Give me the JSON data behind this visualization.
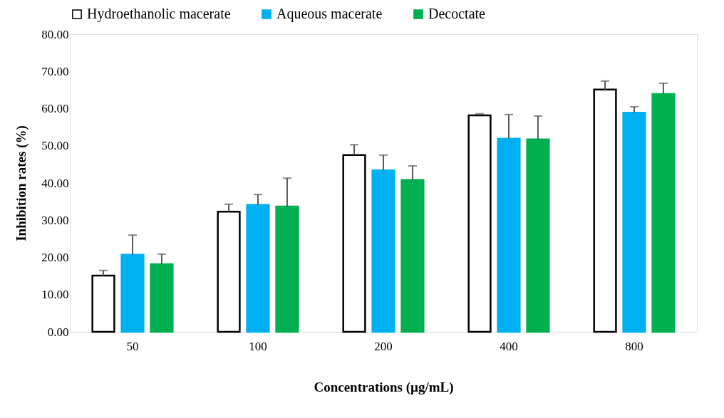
{
  "chart_data": {
    "type": "bar",
    "xlabel": "Concentrations (µg/mL)",
    "ylabel": "Inhibition rates (%)",
    "categories": [
      "50",
      "100",
      "200",
      "400",
      "800"
    ],
    "series": [
      {
        "name": "Hydroethanolic macerate",
        "color": "#ffffff",
        "values": [
          15.1,
          32.3,
          47.5,
          58.2,
          65.1
        ],
        "errors": [
          [
            15.1,
            16.5
          ],
          [
            32.3,
            34.3
          ],
          [
            47.5,
            50.3
          ],
          [
            58.2,
            58.6
          ],
          [
            65.1,
            67.4
          ]
        ]
      },
      {
        "name": "Aqueous macerate",
        "color": "#00b0f0",
        "values": [
          20.7,
          34.1,
          43.4,
          51.9,
          58.9
        ],
        "errors": [
          [
            20.7,
            26.0
          ],
          [
            34.1,
            36.9
          ],
          [
            43.4,
            47.5
          ],
          [
            51.9,
            58.4
          ],
          [
            58.9,
            60.5
          ]
        ]
      },
      {
        "name": "Decoctate",
        "color": "#00b050",
        "values": [
          18.2,
          33.7,
          40.8,
          51.7,
          63.9
        ],
        "errors": [
          [
            18.2,
            20.9
          ],
          [
            33.7,
            41.3
          ],
          [
            40.8,
            44.6
          ],
          [
            51.7,
            58.0
          ],
          [
            63.9,
            66.8
          ]
        ]
      }
    ],
    "ylim": [
      0,
      80
    ],
    "yticks": [
      {
        "value": 0,
        "label": "0.00"
      },
      {
        "value": 10,
        "label": "10.00"
      },
      {
        "value": 20,
        "label": "20.00"
      },
      {
        "value": 30,
        "label": "30.00"
      },
      {
        "value": 40,
        "label": "40.00"
      },
      {
        "value": 50,
        "label": "50.00"
      },
      {
        "value": 60,
        "label": "60.00"
      },
      {
        "value": 70,
        "label": "70.00"
      },
      {
        "value": 80,
        "label": "80.00"
      }
    ],
    "grid": false,
    "legend": "top"
  }
}
